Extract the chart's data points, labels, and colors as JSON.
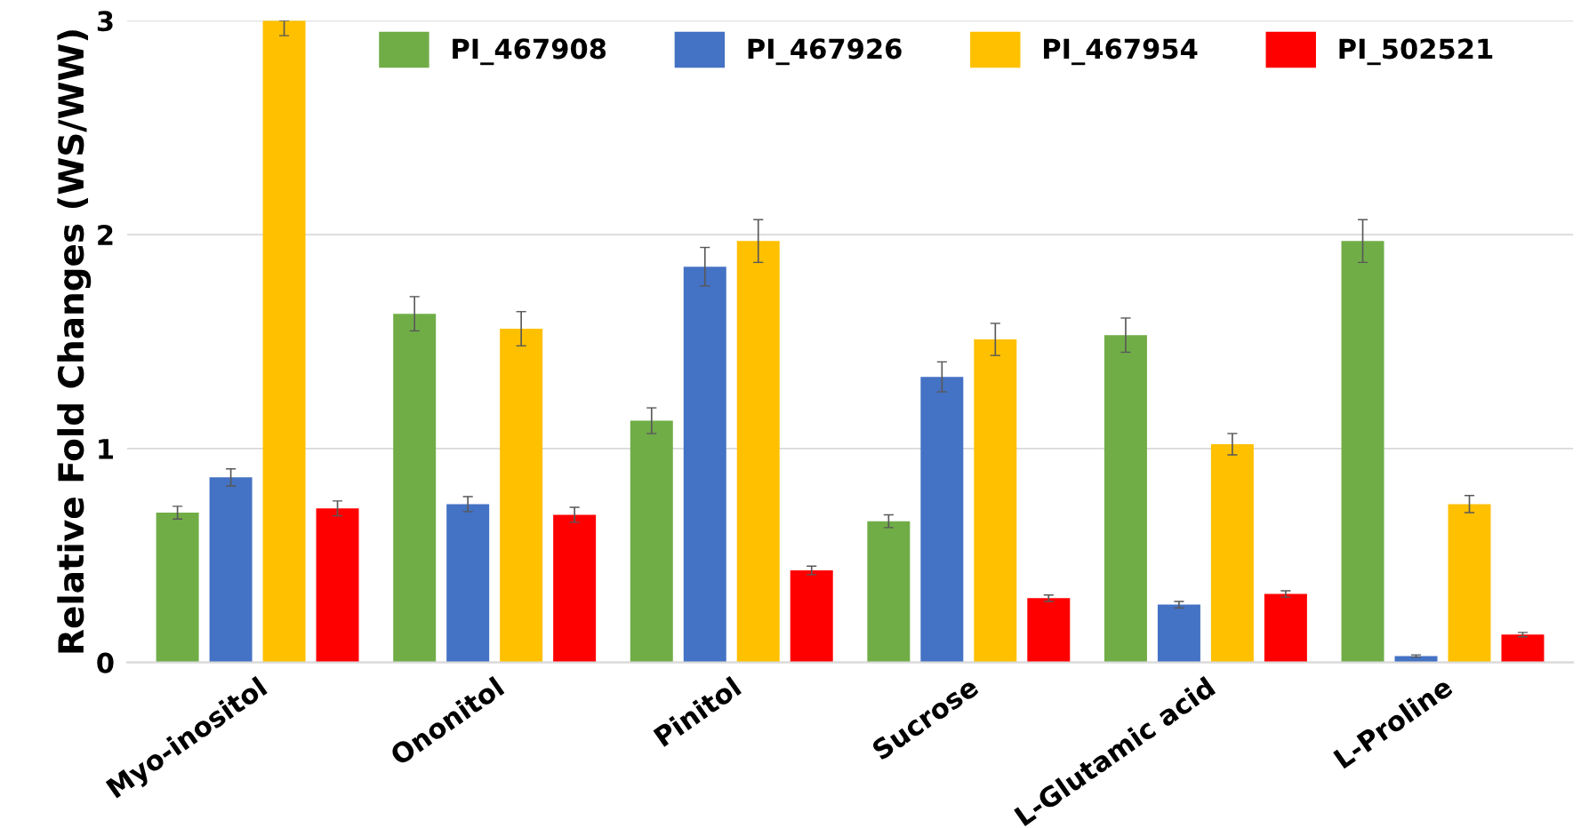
{
  "chart_data": {
    "type": "bar",
    "ylabel": "Relative Fold Changes (WS/WW)",
    "categories": [
      "Myo-inositol",
      "Ononitol",
      "Pinitol",
      "Sucrose",
      "L-Glutamic acid",
      "L-Proline"
    ],
    "series": [
      {
        "name": "PI_467908",
        "color": "#70ad47",
        "values": [
          0.7,
          1.63,
          1.13,
          0.66,
          1.53,
          1.97
        ],
        "errors": [
          0.03,
          0.08,
          0.06,
          0.03,
          0.08,
          0.1
        ]
      },
      {
        "name": "PI_467926",
        "color": "#4472c4",
        "values": [
          0.865,
          0.74,
          1.85,
          1.335,
          0.27,
          0.03
        ],
        "errors": [
          0.04,
          0.035,
          0.09,
          0.07,
          0.015,
          0.005
        ]
      },
      {
        "name": "PI_467954",
        "color": "#ffc000",
        "values": [
          3.0,
          1.56,
          1.97,
          1.51,
          1.02,
          0.74
        ],
        "errors": [
          [
            2.93,
            3.0
          ],
          0.08,
          0.1,
          0.075,
          0.05,
          0.04
        ]
      },
      {
        "name": "PI_502521",
        "color": "#ff0000",
        "values": [
          0.72,
          0.69,
          0.43,
          0.3,
          0.32,
          0.13
        ],
        "errors": [
          0.035,
          0.035,
          0.02,
          0.015,
          0.015,
          0.01
        ]
      }
    ],
    "ylim": [
      0,
      3
    ],
    "yticks": [
      0,
      1,
      2,
      3
    ],
    "grid": "y",
    "legend": "top"
  }
}
